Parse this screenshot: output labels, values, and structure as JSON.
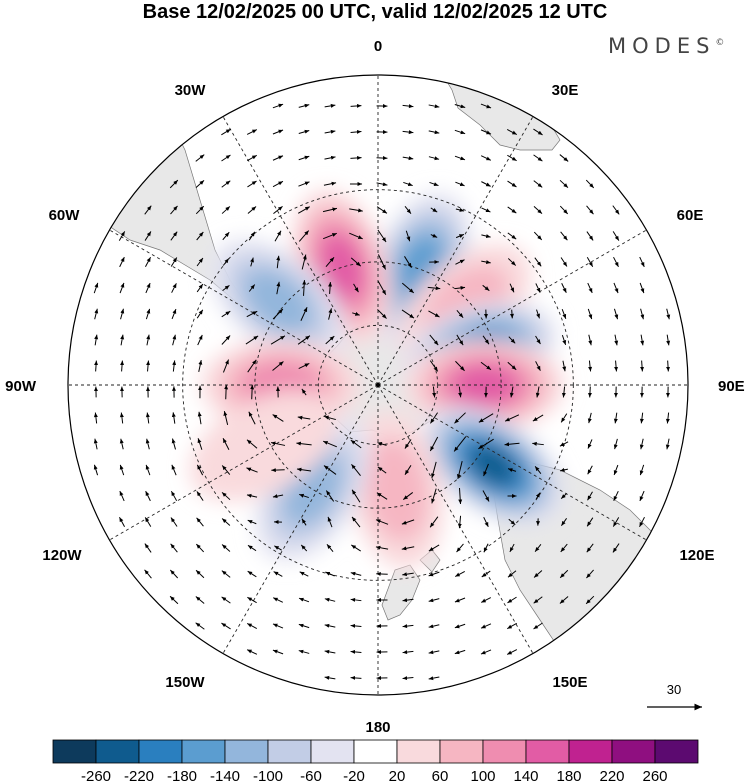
{
  "title": "Base 12/02/2025 00 UTC, valid 12/02/2025 12 UTC",
  "brand": "MODES",
  "brand_mark": "©",
  "lon_labels": {
    "0": "0",
    "30E": "30E",
    "60E": "60E",
    "90E": "90E",
    "120E": "120E",
    "150E": "150E",
    "180": "180",
    "150W": "150W",
    "120W": "120W",
    "90W": "90W",
    "60W": "60W",
    "30W": "30W"
  },
  "reference_vector": {
    "label": "30"
  },
  "colorbar": {
    "colors": [
      "#0d3a5c",
      "#0f5b8e",
      "#2a7fbf",
      "#5b9dd0",
      "#93b6dc",
      "#c2cde6",
      "#e3e3f1",
      "#ffffff",
      "#f9dadd",
      "#f6b6c2",
      "#ef8db0",
      "#e25ca5",
      "#c02290",
      "#8f0f80",
      "#5c0a70"
    ],
    "ticks": [
      "-260",
      "-220",
      "-180",
      "-140",
      "-100",
      "-60",
      "-20",
      "20",
      "60",
      "100",
      "140",
      "180",
      "220",
      "260"
    ]
  },
  "anomaly_cells": [
    {
      "lon": 20,
      "lat": -50,
      "value": -160
    },
    {
      "lon": -17,
      "lat": -50,
      "value": 165
    },
    {
      "lon": 48,
      "lat": -52,
      "value": 60
    },
    {
      "lon": 72,
      "lat": -55,
      "value": -190
    },
    {
      "lon": -50,
      "lat": -48,
      "value": -110
    },
    {
      "lon": 90,
      "lat": -55,
      "value": 150
    },
    {
      "lon": -90,
      "lat": -58,
      "value": 130
    },
    {
      "lon": 125,
      "lat": -45,
      "value": -240
    },
    {
      "lon": 170,
      "lat": -55,
      "value": 90
    },
    {
      "lon": -148,
      "lat": -50,
      "value": -130
    },
    {
      "lon": -118,
      "lat": -48,
      "value": 40
    }
  ]
}
